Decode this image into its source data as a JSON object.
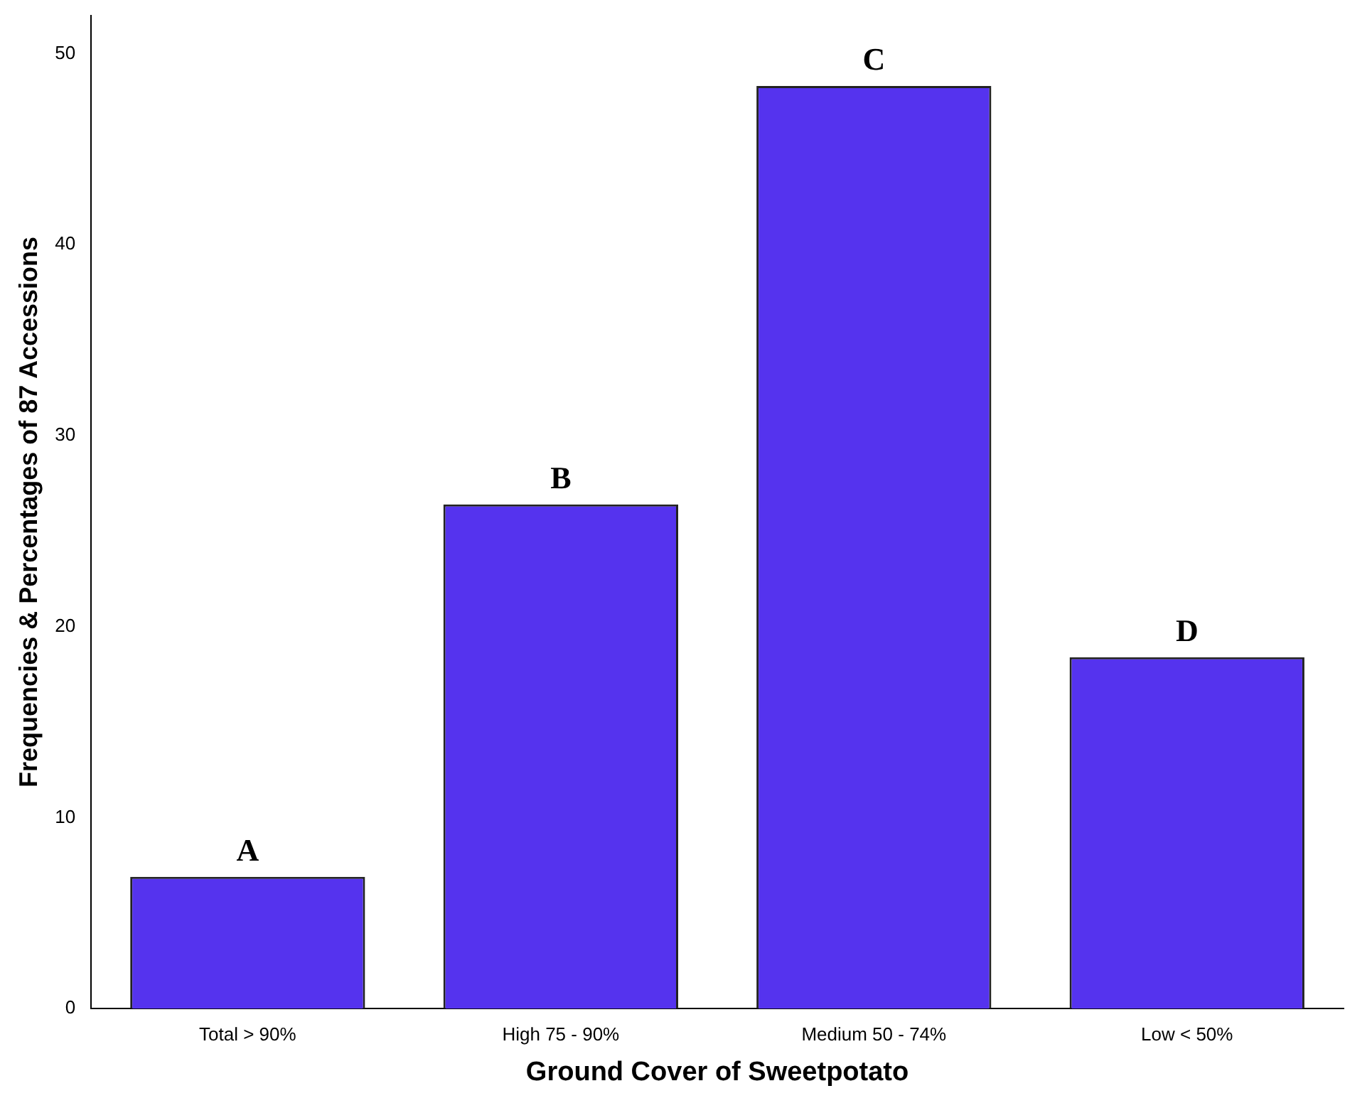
{
  "chart_data": {
    "type": "bar",
    "xlabel": "Ground Cover of Sweetpotato",
    "ylabel": "Frequencies & Percentages of 87 Accessions",
    "categories": [
      "Total > 90%",
      "High 75 - 90%",
      "Medium 50 - 74%",
      "Low < 50%"
    ],
    "values": [
      6.9,
      26.4,
      48.3,
      18.4
    ],
    "color": "#5533ee",
    "ylim": [
      0,
      52
    ],
    "yticks": [
      0,
      10,
      20,
      30,
      40,
      50
    ],
    "annotations": [
      {
        "text": "A",
        "x": "Total > 90%",
        "y": 6.9
      },
      {
        "text": "B",
        "x": "High 75 - 90%",
        "y": 26.4
      },
      {
        "text": "C",
        "x": "Medium 50 - 74%",
        "y": 48.3
      },
      {
        "text": "D",
        "x": "Low < 50%",
        "y": 18.4
      }
    ]
  }
}
